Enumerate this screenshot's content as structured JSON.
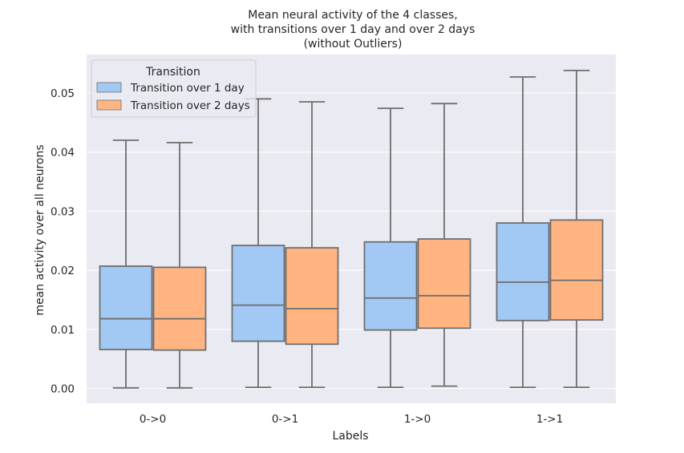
{
  "chart_data": {
    "type": "boxplot",
    "title_lines": [
      "Mean neural activity of the 4 classes,",
      "with transitions over 1 day and over 2 days",
      "(without Outliers)"
    ],
    "xlabel": "Labels",
    "ylabel": "mean activity over all neurons",
    "categories": [
      "0->0",
      "0->1",
      "1->0",
      "1->1"
    ],
    "ylim": [
      -0.0025,
      0.0565
    ],
    "yticks": [
      0.0,
      0.01,
      0.02,
      0.03,
      0.04,
      0.05
    ],
    "ytick_labels": [
      "0.00",
      "0.01",
      "0.02",
      "0.03",
      "0.04",
      "0.05"
    ],
    "grid": true,
    "legend": {
      "title": "Transition",
      "placement": "top-left",
      "entries": [
        "Transition over 1 day",
        "Transition over 2 days"
      ]
    },
    "series": [
      {
        "name": "Transition over 1 day",
        "color": "#a1c9f4",
        "boxes": [
          {
            "whislo": 0.0001,
            "q1": 0.0066,
            "med": 0.0118,
            "q3": 0.0207,
            "whishi": 0.042
          },
          {
            "whislo": 0.0002,
            "q1": 0.008,
            "med": 0.0141,
            "q3": 0.0242,
            "whishi": 0.049
          },
          {
            "whislo": 0.0002,
            "q1": 0.0099,
            "med": 0.0153,
            "q3": 0.0248,
            "whishi": 0.0474
          },
          {
            "whislo": 0.0002,
            "q1": 0.0115,
            "med": 0.018,
            "q3": 0.028,
            "whishi": 0.0527
          }
        ]
      },
      {
        "name": "Transition over 2 days",
        "color": "#ffb482",
        "boxes": [
          {
            "whislo": 0.0001,
            "q1": 0.0065,
            "med": 0.0118,
            "q3": 0.0205,
            "whishi": 0.0416
          },
          {
            "whislo": 0.0002,
            "q1": 0.0075,
            "med": 0.0135,
            "q3": 0.0238,
            "whishi": 0.0485
          },
          {
            "whislo": 0.0004,
            "q1": 0.0102,
            "med": 0.0157,
            "q3": 0.0253,
            "whishi": 0.0482
          },
          {
            "whislo": 0.0002,
            "q1": 0.0116,
            "med": 0.0183,
            "q3": 0.0285,
            "whishi": 0.0538
          }
        ]
      }
    ],
    "colors": {
      "plot_background": "#eaeaf2",
      "grid": "#ffffff",
      "box_edge": "#6e6e6e",
      "text": "#262626"
    }
  }
}
